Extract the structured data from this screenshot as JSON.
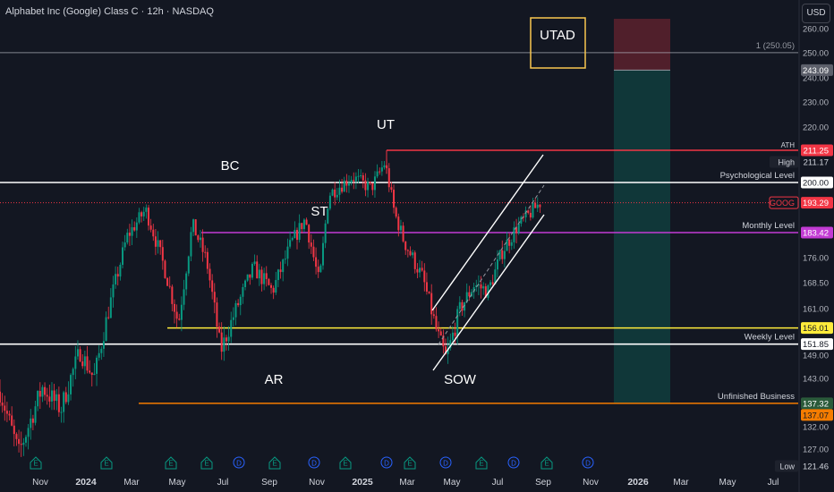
{
  "header": {
    "title": "Alphabet Inc (Google) Class C · 12h · NASDAQ",
    "currency": "USD"
  },
  "chart_data": {
    "type": "candlestick",
    "ylim": [
      121.46,
      264
    ],
    "x_ticks": [
      "Nov",
      "2024",
      "Mar",
      "May",
      "Jul",
      "Sep",
      "Nov",
      "2025",
      "Mar",
      "May",
      "Jul",
      "Sep",
      "Nov",
      "2026",
      "Mar",
      "May",
      "Jul"
    ],
    "y_ticks": [
      260.0,
      250.0,
      240.0,
      230.0,
      220.0,
      176.0,
      168.5,
      161.0,
      149.0,
      143.0,
      132.0,
      127.0
    ],
    "price_path": [
      [
        0.0,
        140
      ],
      [
        0.04,
        126
      ],
      [
        0.09,
        141
      ],
      [
        0.13,
        136
      ],
      [
        0.17,
        150
      ],
      [
        0.2,
        143
      ],
      [
        0.23,
        160
      ],
      [
        0.27,
        182
      ],
      [
        0.31,
        191
      ],
      [
        0.35,
        173
      ],
      [
        0.38,
        157
      ],
      [
        0.41,
        186
      ],
      [
        0.44,
        175
      ],
      [
        0.47,
        150
      ],
      [
        0.5,
        160
      ],
      [
        0.54,
        173
      ],
      [
        0.58,
        166
      ],
      [
        0.62,
        180
      ],
      [
        0.65,
        188
      ],
      [
        0.68,
        168
      ],
      [
        0.7,
        196
      ],
      [
        0.75,
        202
      ],
      [
        0.79,
        198
      ],
      [
        0.82,
        207
      ],
      [
        0.84,
        190
      ],
      [
        0.86,
        181
      ],
      [
        0.9,
        170
      ],
      [
        0.93,
        155
      ],
      [
        0.95,
        148
      ],
      [
        0.98,
        161
      ],
      [
        1.01,
        168
      ],
      [
        1.04,
        166
      ],
      [
        1.07,
        178
      ],
      [
        1.1,
        185
      ],
      [
        1.13,
        190
      ],
      [
        1.15,
        193.29
      ]
    ],
    "horizontal_levels": [
      {
        "price": 250.05,
        "label": "1 (250.05)",
        "color": "#b2b5be"
      },
      {
        "price": 211.25,
        "label": "ATH",
        "color": "#f23645"
      },
      {
        "price": 200.0,
        "label": "Psychological Level",
        "color": "#ffffff"
      },
      {
        "price": 193.29,
        "label": "",
        "color": "#f23645"
      },
      {
        "price": 183.42,
        "label": "Monthly Level",
        "color": "#c23bd4"
      },
      {
        "price": 156.01,
        "label": "",
        "color": "#ffeb3b"
      },
      {
        "price": 151.85,
        "label": "Weekly Level",
        "color": "#ffffff"
      },
      {
        "price": 137.32,
        "label": "Unfinished Business",
        "color": "#f57c00"
      }
    ],
    "price_tags": [
      {
        "price": 243.09,
        "text": "243.09",
        "bg": "#5d606b",
        "fg": "#ffffff"
      },
      {
        "price": 211.25,
        "text": "211.25",
        "bg": "#f23645",
        "fg": "#ffffff"
      },
      {
        "price": 211.17,
        "text": "211.17",
        "bg": "#131722",
        "fg": "#d1d4dc",
        "side_label": "High"
      },
      {
        "price": 200.0,
        "text": "200.00",
        "bg": "#ffffff",
        "fg": "#131722"
      },
      {
        "price": 193.29,
        "text": "193.29",
        "bg": "#f23645",
        "fg": "#ffffff",
        "side_label": "GOOG"
      },
      {
        "price": 183.42,
        "text": "183.42",
        "bg": "#c23bd4",
        "fg": "#ffffff"
      },
      {
        "price": 156.01,
        "text": "156.01",
        "bg": "#ffeb3b",
        "fg": "#131722"
      },
      {
        "price": 151.85,
        "text": "151.85",
        "bg": "#ffffff",
        "fg": "#131722"
      },
      {
        "price": 137.32,
        "text": "137.32",
        "bg": "#2a5a3a",
        "fg": "#ffffff"
      },
      {
        "price": 137.07,
        "text": "137.07",
        "bg": "#f57c00",
        "fg": "#131722"
      },
      {
        "price": 121.46,
        "text": "121.46",
        "bg": "#131722",
        "fg": "#d1d4dc",
        "side_label": "Low"
      }
    ],
    "annotations": [
      {
        "text": "UT",
        "price": 219
      },
      {
        "text": "BC",
        "price": 206
      },
      {
        "text": "ST",
        "price": 186
      },
      {
        "text": "AR",
        "price": 142
      },
      {
        "text": "SOW",
        "price": 142
      },
      {
        "text": "UTAD",
        "price": 254
      }
    ],
    "position": {
      "entry": 243.09,
      "stop": 264,
      "target": 137.32
    },
    "events": [
      "E",
      "E",
      "E",
      "E",
      "D",
      "E",
      "D",
      "E",
      "D",
      "E",
      "D",
      "E",
      "D",
      "E",
      "D",
      "E"
    ],
    "colors": {
      "up": "#089981",
      "down": "#f23645",
      "background": "#131722",
      "grid": "#1e222d"
    }
  }
}
